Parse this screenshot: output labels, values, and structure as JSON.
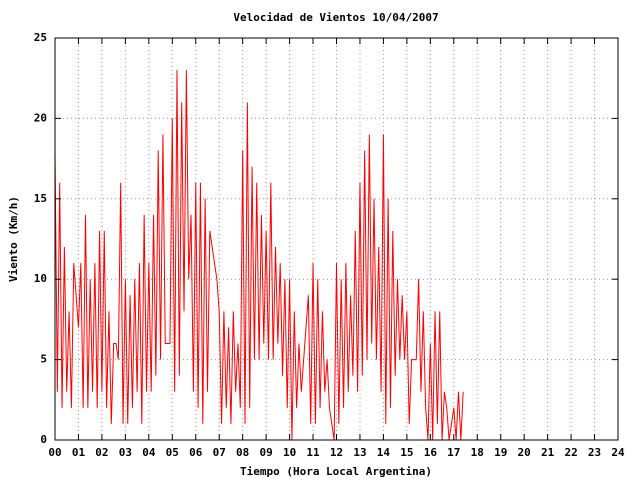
{
  "chart_data": {
    "type": "line",
    "title": "Velocidad de Vientos 10/04/2007",
    "x_label": "Tiempo (Hora Local Argentina)",
    "y_label": "Viento (Km/h)",
    "xlim": [
      0,
      24
    ],
    "ylim": [
      0,
      25
    ],
    "xticks": [
      {
        "value": 0,
        "label": "00"
      },
      {
        "value": 1,
        "label": "01"
      },
      {
        "value": 2,
        "label": "02"
      },
      {
        "value": 3,
        "label": "03"
      },
      {
        "value": 4,
        "label": "04"
      },
      {
        "value": 5,
        "label": "05"
      },
      {
        "value": 6,
        "label": "06"
      },
      {
        "value": 7,
        "label": "07"
      },
      {
        "value": 8,
        "label": "08"
      },
      {
        "value": 9,
        "label": "09"
      },
      10,
      11,
      12,
      13,
      14,
      15,
      16,
      17,
      18,
      19,
      20,
      21,
      22,
      23,
      24
    ],
    "yticks": [
      0,
      5,
      10,
      15,
      20,
      25
    ],
    "grid": true,
    "color": "#ff0000",
    "x": [
      0,
      0.1,
      0.2,
      0.3,
      0.4,
      0.5,
      0.6,
      0.7,
      0.8,
      0.9,
      1,
      1.1,
      1.2,
      1.3,
      1.4,
      1.5,
      1.6,
      1.7,
      1.8,
      1.9,
      2,
      2.1,
      2.2,
      2.3,
      2.4,
      2.5,
      2.6,
      2.7,
      2.8,
      2.9,
      3,
      3.1,
      3.2,
      3.3,
      3.4,
      3.5,
      3.6,
      3.7,
      3.8,
      3.9,
      4,
      4.1,
      4.2,
      4.3,
      4.4,
      4.5,
      4.6,
      4.7,
      4.8,
      4.9,
      5,
      5.1,
      5.2,
      5.3,
      5.4,
      5.5,
      5.6,
      5.7,
      5.8,
      5.9,
      6,
      6.1,
      6.2,
      6.3,
      6.4,
      6.5,
      6.6,
      6.7,
      6.8,
      6.9,
      7,
      7.1,
      7.2,
      7.3,
      7.4,
      7.5,
      7.6,
      7.7,
      7.8,
      7.9,
      8,
      8.1,
      8.2,
      8.3,
      8.4,
      8.5,
      8.6,
      8.7,
      8.8,
      8.9,
      9,
      9.1,
      9.2,
      9.3,
      9.4,
      9.5,
      9.6,
      9.7,
      9.8,
      9.9,
      10,
      10.1,
      10.2,
      10.3,
      10.4,
      10.5,
      10.6,
      10.7,
      10.8,
      10.9,
      11,
      11.1,
      11.2,
      11.3,
      11.4,
      11.5,
      11.6,
      11.7,
      11.8,
      11.9,
      12,
      12.1,
      12.2,
      12.3,
      12.4,
      12.5,
      12.6,
      12.7,
      12.8,
      12.9,
      13,
      13.1,
      13.2,
      13.3,
      13.4,
      13.5,
      13.6,
      13.7,
      13.8,
      13.9,
      14,
      14.1,
      14.2,
      14.3,
      14.4,
      14.5,
      14.6,
      14.7,
      14.8,
      14.9,
      15,
      15.1,
      15.2,
      15.3,
      15.4,
      15.5,
      15.6,
      15.7,
      15.8,
      15.9,
      16,
      16.1,
      16.2,
      16.3,
      16.4,
      16.5,
      16.6,
      16.7,
      16.8,
      16.9,
      17,
      17.1,
      17.2,
      17.3,
      17.4
    ],
    "values": [
      18,
      3,
      16,
      2,
      12,
      3,
      8,
      2,
      11,
      9,
      7,
      11,
      2,
      14,
      2,
      10,
      3,
      11,
      2,
      13,
      3,
      13,
      2,
      8,
      1,
      6,
      6,
      5,
      16,
      1,
      10,
      1,
      9,
      2,
      10,
      3,
      11,
      1,
      14,
      3,
      11,
      3,
      14,
      4,
      18,
      5,
      19,
      6,
      6,
      6,
      20,
      3,
      23,
      4,
      21,
      8,
      23,
      10,
      14,
      3,
      16,
      2,
      16,
      1,
      15,
      3,
      13,
      12,
      11,
      10,
      8,
      1,
      8,
      2,
      7,
      1,
      8,
      3,
      6,
      2,
      18,
      1,
      21,
      2,
      17,
      5,
      16,
      5,
      14,
      6,
      13,
      5,
      16,
      5,
      12,
      6,
      11,
      4,
      10,
      2,
      10,
      0,
      8,
      2,
      6,
      3,
      5,
      7,
      9,
      1,
      11,
      1,
      10,
      2,
      8,
      3,
      5,
      2,
      1,
      0,
      11,
      1,
      10,
      2,
      11,
      3,
      9,
      4,
      13,
      3,
      16,
      4,
      18,
      5,
      19,
      6,
      15,
      5,
      12,
      3,
      19,
      1,
      15,
      2,
      13,
      4,
      10,
      5,
      9,
      5,
      8,
      1,
      5,
      5,
      5,
      10,
      3,
      8,
      2,
      0,
      6,
      0,
      8,
      1,
      8,
      0,
      3,
      2,
      0,
      1,
      2,
      0,
      3,
      0,
      3
    ]
  }
}
